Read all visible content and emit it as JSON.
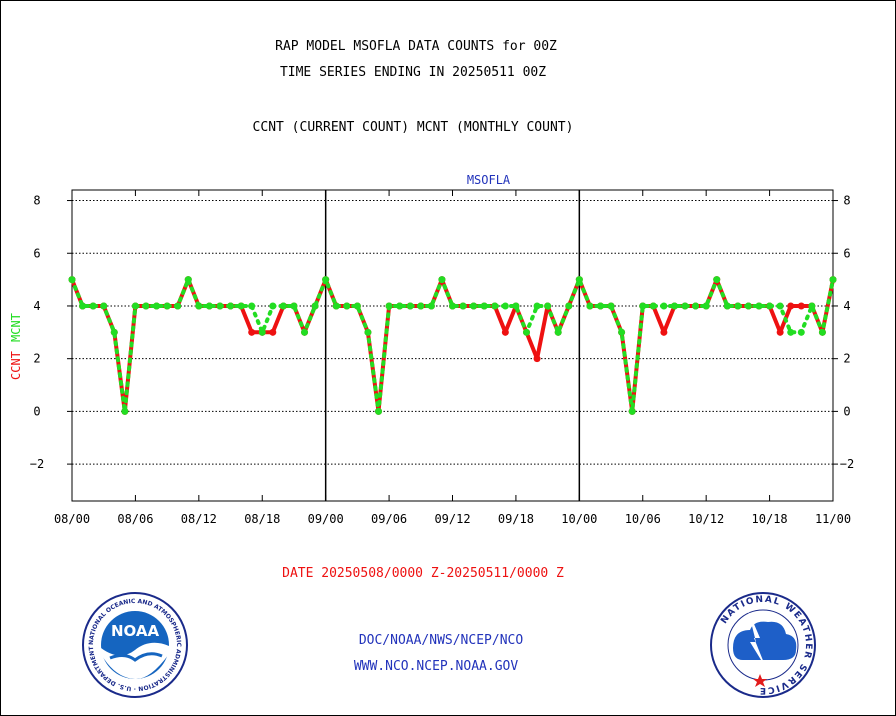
{
  "header": {
    "title_line1": "RAP MODEL MSOFLA DATA COUNTS for 00Z",
    "title_line2": "TIME SERIES ENDING IN 20250511 00Z",
    "subtitle": "CCNT (CURRENT COUNT) MCNT (MONTHLY COUNT)"
  },
  "footer": {
    "date_range": "DATE 20250508/0000 Z-20250511/0000 Z",
    "org_line": "DOC/NOAA/NWS/NCEP/NCO",
    "website": "WWW.NCO.NCEP.NOAA.GOV"
  },
  "logos": {
    "noaa_label": "NOAA",
    "noaa_ring_text": "NATIONAL OCEANIC AND ATMOSPHERIC ADMINISTRATION · U.S. DEPARTMENT OF COMMERCE",
    "nws_ring_text": "NATIONAL WEATHER SERVICE"
  },
  "colors": {
    "ccnt": "#ee1111",
    "mcnt": "#22dd22",
    "text_blue": "#2233bb",
    "date_red": "#ee1111"
  },
  "chart_data": {
    "type": "line",
    "title": "MSOFLA",
    "ylabel_ccnt": "CCNT",
    "ylabel_mcnt": "MCNT",
    "ylim": [
      -3.4,
      8.4
    ],
    "yticks": [
      8,
      6,
      4,
      2,
      0,
      -2
    ],
    "x_range_hours": [
      0,
      72
    ],
    "x_tick_labels": [
      "08/00",
      "08/06",
      "08/12",
      "08/18",
      "09/00",
      "09/06",
      "09/12",
      "09/18",
      "10/00",
      "10/06",
      "10/12",
      "10/18",
      "11/00"
    ],
    "day_boundaries_hours": [
      24,
      48
    ],
    "grid": "horizontal-dotted",
    "series": [
      {
        "name": "CCNT",
        "color": "#ee1111",
        "style": "solid",
        "x": [
          0,
          1,
          2,
          3,
          4,
          5,
          6,
          7,
          8,
          9,
          10,
          11,
          12,
          13,
          14,
          15,
          16,
          17,
          18,
          19,
          20,
          21,
          22,
          23,
          24,
          25,
          26,
          27,
          28,
          29,
          30,
          31,
          32,
          33,
          34,
          35,
          36,
          37,
          38,
          39,
          40,
          41,
          42,
          43,
          44,
          45,
          46,
          47,
          48,
          49,
          50,
          51,
          52,
          53,
          54,
          55,
          56,
          57,
          58,
          59,
          60,
          61,
          62,
          63,
          64,
          65,
          66,
          67,
          68,
          69,
          70,
          71,
          72
        ],
        "values": [
          5,
          4,
          4,
          4,
          3,
          0,
          4,
          4,
          4,
          4,
          4,
          5,
          4,
          4,
          4,
          4,
          4,
          3,
          3,
          3,
          4,
          4,
          3,
          4,
          5,
          4,
          4,
          4,
          3,
          0,
          4,
          4,
          4,
          4,
          4,
          5,
          4,
          4,
          4,
          4,
          4,
          3,
          4,
          3,
          2,
          4,
          3,
          4,
          5,
          4,
          4,
          4,
          3,
          0,
          4,
          4,
          3,
          4,
          4,
          4,
          4,
          5,
          4,
          4,
          4,
          4,
          4,
          3,
          4,
          4,
          4,
          3,
          5
        ]
      },
      {
        "name": "MCNT",
        "color": "#22dd22",
        "style": "dotted",
        "x": [
          0,
          1,
          2,
          3,
          4,
          5,
          6,
          7,
          8,
          9,
          10,
          11,
          12,
          13,
          14,
          15,
          16,
          17,
          18,
          19,
          20,
          21,
          22,
          23,
          24,
          25,
          26,
          27,
          28,
          29,
          30,
          31,
          32,
          33,
          34,
          35,
          36,
          37,
          38,
          39,
          40,
          41,
          42,
          43,
          44,
          45,
          46,
          47,
          48,
          49,
          50,
          51,
          52,
          53,
          54,
          55,
          56,
          57,
          58,
          59,
          60,
          61,
          62,
          63,
          64,
          65,
          66,
          67,
          68,
          69,
          70,
          71,
          72
        ],
        "values": [
          5,
          4,
          4,
          4,
          3,
          0,
          4,
          4,
          4,
          4,
          4,
          5,
          4,
          4,
          4,
          4,
          4,
          4,
          3,
          4,
          4,
          4,
          3,
          4,
          5,
          4,
          4,
          4,
          3,
          0,
          4,
          4,
          4,
          4,
          4,
          5,
          4,
          4,
          4,
          4,
          4,
          4,
          4,
          3,
          4,
          4,
          3,
          4,
          5,
          4,
          4,
          4,
          3,
          0,
          4,
          4,
          4,
          4,
          4,
          4,
          4,
          5,
          4,
          4,
          4,
          4,
          4,
          4,
          3,
          3,
          4,
          3,
          5
        ]
      }
    ]
  }
}
